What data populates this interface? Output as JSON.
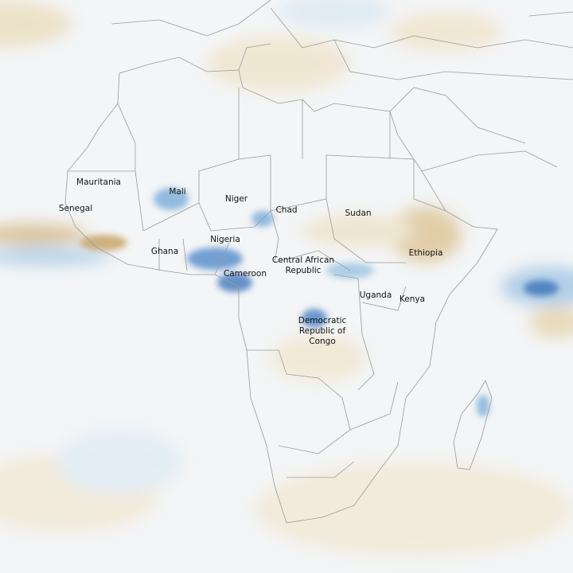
{
  "map": {
    "labels": [
      {
        "lines": [
          "Mauritania"
        ]
      },
      {
        "lines": [
          "Mali"
        ]
      },
      {
        "lines": [
          "Niger"
        ]
      },
      {
        "lines": [
          "Senegal"
        ]
      },
      {
        "lines": [
          "Chad"
        ]
      },
      {
        "lines": [
          "Sudan"
        ]
      },
      {
        "lines": [
          "Nigeria"
        ]
      },
      {
        "lines": [
          "Ghana"
        ]
      },
      {
        "lines": [
          "Ethiopia"
        ]
      },
      {
        "lines": [
          "Central African",
          "Republic"
        ]
      },
      {
        "lines": [
          "Cameroon"
        ]
      },
      {
        "lines": [
          "Uganda"
        ]
      },
      {
        "lines": [
          "Kenya"
        ]
      },
      {
        "lines": [
          "Democratic",
          "Republic of",
          "Congo"
        ]
      }
    ]
  }
}
